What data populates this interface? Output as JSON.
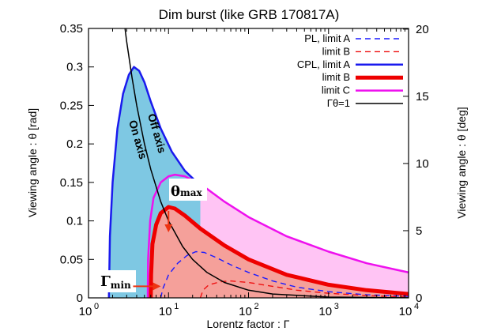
{
  "chart_data": {
    "type": "area",
    "title": "Dim burst (like GRB 170817A)",
    "xlabel": "Lorentz factor : Γ",
    "ylabel_left": "Viewing angle : θ [rad]",
    "ylabel_right": "Viewing angle : θ [deg]",
    "xscale": "log",
    "xlim": [
      1,
      10000
    ],
    "ylim": [
      0,
      0.35
    ],
    "y2lim": [
      0,
      20.05
    ],
    "x_ticks": [
      {
        "value": 1,
        "base": "10",
        "exp": "0"
      },
      {
        "value": 10,
        "base": "10",
        "exp": "1"
      },
      {
        "value": 100,
        "base": "10",
        "exp": "2"
      },
      {
        "value": 1000,
        "base": "10",
        "exp": "3"
      },
      {
        "value": 10000,
        "base": "10",
        "exp": "4"
      }
    ],
    "y_ticks": [
      "0",
      "0.05",
      "0.1",
      "0.15",
      "0.2",
      "0.25",
      "0.3",
      "0.35"
    ],
    "y2_ticks": [
      "0",
      "5",
      "10",
      "15",
      "20"
    ],
    "legend_position": "top-right",
    "series": [
      {
        "name": "PL, limit A",
        "color": "#1a1aff",
        "style": "dashed",
        "width": 1.4,
        "points": [
          [
            8,
            0
          ],
          [
            8.5,
            0.012
          ],
          [
            10,
            0.03
          ],
          [
            13,
            0.045
          ],
          [
            17,
            0.055
          ],
          [
            22,
            0.06
          ],
          [
            28,
            0.059
          ],
          [
            40,
            0.052
          ],
          [
            60,
            0.043
          ],
          [
            100,
            0.033
          ],
          [
            200,
            0.022
          ],
          [
            400,
            0.014
          ],
          [
            1000,
            0.008
          ],
          [
            3000,
            0.004
          ],
          [
            10000,
            0.002
          ]
        ]
      },
      {
        "name": "limit B",
        "color": "#ee1111",
        "style": "dashed",
        "width": 1.4,
        "points": [
          [
            25,
            0
          ],
          [
            27,
            0.01
          ],
          [
            32,
            0.017
          ],
          [
            45,
            0.021
          ],
          [
            60,
            0.022
          ],
          [
            100,
            0.02
          ],
          [
            200,
            0.015
          ],
          [
            400,
            0.01
          ],
          [
            1000,
            0.006
          ],
          [
            3000,
            0.003
          ],
          [
            10000,
            0.001
          ]
        ]
      },
      {
        "name": "CPL, limit A",
        "color": "#1a1aee",
        "style": "solid",
        "width": 2.5,
        "points": [
          [
            1.8,
            0
          ],
          [
            1.85,
            0.08
          ],
          [
            2,
            0.15
          ],
          [
            2.3,
            0.22
          ],
          [
            2.7,
            0.265
          ],
          [
            3.2,
            0.29
          ],
          [
            3.7,
            0.3
          ],
          [
            4.3,
            0.295
          ],
          [
            5,
            0.28
          ],
          [
            6,
            0.255
          ],
          [
            8,
            0.22
          ],
          [
            11,
            0.19
          ],
          [
            16,
            0.165
          ],
          [
            25,
            0.146
          ]
        ]
      },
      {
        "name": "limit B",
        "color": "#ee0000",
        "style": "solid",
        "width": 5,
        "points": [
          [
            6,
            0
          ],
          [
            6.05,
            0.03
          ],
          [
            6.3,
            0.07
          ],
          [
            7,
            0.095
          ],
          [
            8,
            0.11
          ],
          [
            10,
            0.118
          ],
          [
            12,
            0.116
          ],
          [
            16,
            0.107
          ],
          [
            25,
            0.09
          ],
          [
            50,
            0.068
          ],
          [
            100,
            0.05
          ],
          [
            300,
            0.03
          ],
          [
            1000,
            0.017
          ],
          [
            3000,
            0.01
          ],
          [
            10000,
            0.005
          ]
        ]
      },
      {
        "name": "limit C",
        "color": "#ee11ee",
        "style": "solid",
        "width": 2.5,
        "points": [
          [
            5.5,
            0
          ],
          [
            5.55,
            0.05
          ],
          [
            5.9,
            0.1
          ],
          [
            6.5,
            0.13
          ],
          [
            8,
            0.15
          ],
          [
            10,
            0.158
          ],
          [
            12,
            0.16
          ],
          [
            16,
            0.158
          ],
          [
            25,
            0.148
          ],
          [
            50,
            0.125
          ],
          [
            100,
            0.105
          ],
          [
            300,
            0.08
          ],
          [
            1000,
            0.06
          ],
          [
            3000,
            0.045
          ],
          [
            10000,
            0.033
          ]
        ]
      },
      {
        "name": "Γθ=1",
        "color": "#000000",
        "style": "solid",
        "width": 1.5,
        "equation": "theta = 1/Gamma",
        "points": [
          [
            2.86,
            0.35
          ],
          [
            3,
            0.333
          ],
          [
            3.5,
            0.286
          ],
          [
            4,
            0.25
          ],
          [
            5,
            0.2
          ],
          [
            6,
            0.167
          ],
          [
            8,
            0.125
          ],
          [
            10,
            0.1
          ],
          [
            15,
            0.0667
          ],
          [
            20,
            0.05
          ],
          [
            30,
            0.0333
          ],
          [
            50,
            0.02
          ],
          [
            100,
            0.01
          ],
          [
            200,
            0.005
          ],
          [
            1000,
            0.001
          ],
          [
            10000,
            0.0001
          ]
        ]
      }
    ],
    "fills": [
      {
        "name": "CPL limit A region",
        "color": "#7ec8e3"
      },
      {
        "name": "limit C region",
        "color": "#ffc4f4"
      },
      {
        "name": "limit B region",
        "color": "#f5a09a"
      }
    ],
    "annotations": {
      "on_axis": "On axis",
      "off_axis": "Off axis",
      "theta_max_symbol": "θ",
      "theta_max_sub": "max",
      "gamma_min_symbol": "Γ",
      "gamma_min_sub": "min",
      "theta_max_point": [
        10,
        0.118
      ],
      "gamma_min_point": [
        8,
        0.015
      ],
      "arrow_color": "#ee3311"
    }
  }
}
